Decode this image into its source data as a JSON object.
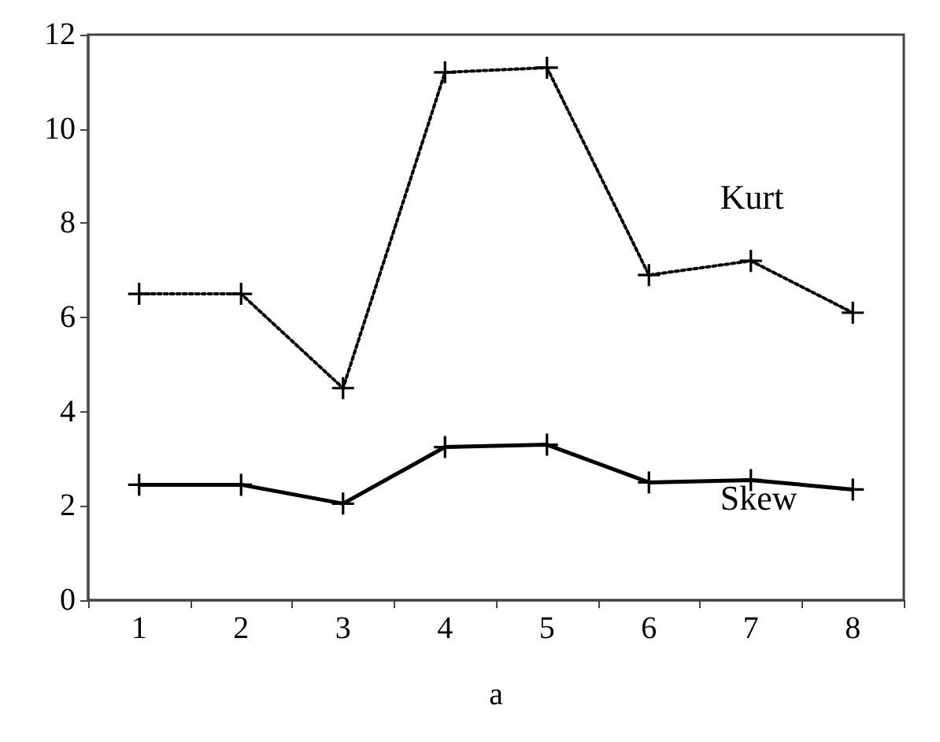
{
  "chart_data": {
    "type": "line",
    "xlabel": "a",
    "categories": [
      "1",
      "2",
      "3",
      "4",
      "5",
      "6",
      "7",
      "8"
    ],
    "series": [
      {
        "name": "Kurt",
        "color": "#000000",
        "line_style": "dotted",
        "values": [
          6.5,
          6.5,
          4.5,
          11.2,
          11.3,
          6.9,
          7.2,
          6.1
        ]
      },
      {
        "name": "Skew",
        "color": "#000000",
        "line_style": "solid",
        "values": [
          2.45,
          2.45,
          2.05,
          3.25,
          3.3,
          2.5,
          2.55,
          2.35
        ]
      }
    ],
    "ylim": [
      0,
      12
    ],
    "yticks": [
      0,
      2,
      4,
      6,
      8,
      10,
      12
    ],
    "grid": false,
    "legend": false,
    "marker": "cross"
  }
}
